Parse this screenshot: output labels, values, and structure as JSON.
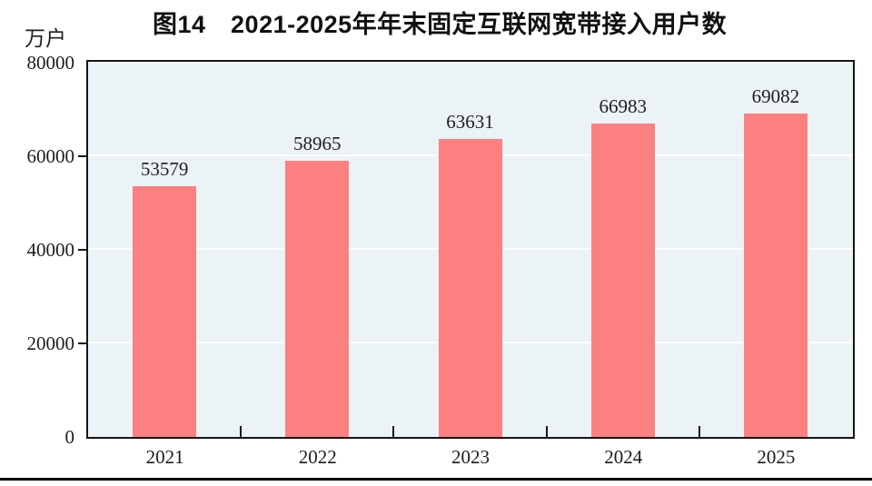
{
  "figure": {
    "title": "图14　2021-2025年年末固定互联网宽带接入用户数",
    "unit_label": "万户"
  },
  "chart_data": {
    "type": "bar",
    "title": "图14　2021-2025年年末固定互联网宽带接入用户数",
    "ylabel": "万户",
    "xlabel": "",
    "categories": [
      "2021",
      "2022",
      "2023",
      "2024",
      "2025"
    ],
    "values": [
      53579,
      58965,
      63631,
      66983,
      69082
    ],
    "data_labels": [
      "53579",
      "58965",
      "63631",
      "66983",
      "69082"
    ],
    "ylim": [
      0,
      80000
    ],
    "yticks": [
      0,
      20000,
      40000,
      60000,
      80000
    ],
    "grid": true,
    "legend": "none",
    "bar_color": "#fc8080",
    "plot_background": "#ecf3f6",
    "gridline_color": "#ffffff",
    "axis_color": "#161616"
  }
}
